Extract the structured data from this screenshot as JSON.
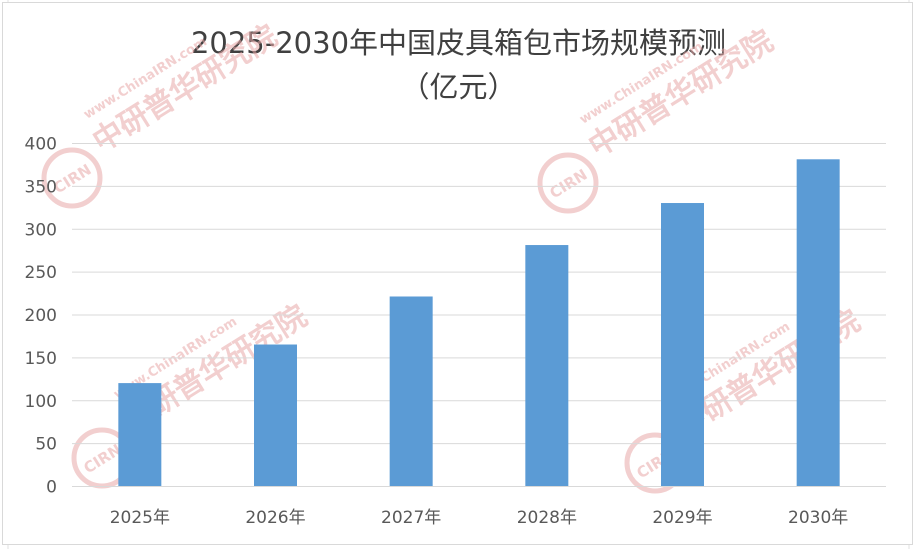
{
  "chart_data": {
    "type": "bar",
    "title_line1": "2025-2030年中国皮具箱包市场规模预测",
    "title_line2": "（亿元）",
    "categories": [
      "2025年",
      "2026年",
      "2027年",
      "2028年",
      "2029年",
      "2030年"
    ],
    "values": [
      120,
      165,
      221,
      281,
      330,
      381
    ],
    "ylim": [
      0,
      400
    ],
    "yticks": [
      0,
      50,
      100,
      150,
      200,
      250,
      300,
      350,
      400
    ],
    "grid": true,
    "legend": "none",
    "bar_color": "#5b9bd5",
    "gridline_color": "#d9d9d9",
    "label_color": "#595959"
  },
  "watermark": {
    "brand_cn": "中研普华研究院",
    "brand_url": "www.ChinaIRN.com",
    "logo_text": "CIRN",
    "color": "#e8a8a8"
  }
}
